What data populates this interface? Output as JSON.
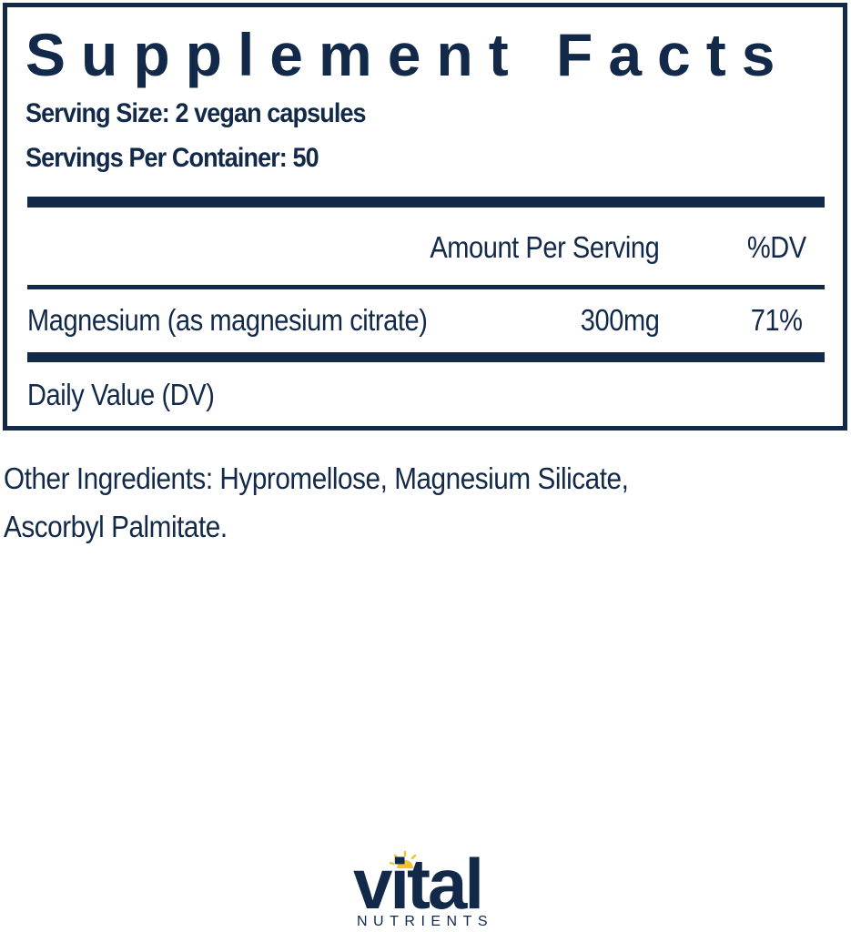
{
  "label": {
    "title": "Supplement Facts",
    "serving_size": "Serving Size: 2 vegan capsules",
    "servings_per_container": "Servings Per Container: 50",
    "header": {
      "amount": "Amount Per Serving",
      "dv": "%DV"
    },
    "rows": [
      {
        "name": "Magnesium (as magnesium citrate)",
        "amount": "300mg",
        "dv": "71%"
      }
    ],
    "footnote": "Daily Value (DV)"
  },
  "other_ingredients": [
    "Other Ingredients: Hypromellose, Magnesium Silicate,",
    "Ascorbyl Palmitate."
  ],
  "brand": {
    "name": "vital",
    "sub": "NUTRIENTS",
    "colors": {
      "navy": "#12294a",
      "sun": "#f2c230"
    }
  }
}
